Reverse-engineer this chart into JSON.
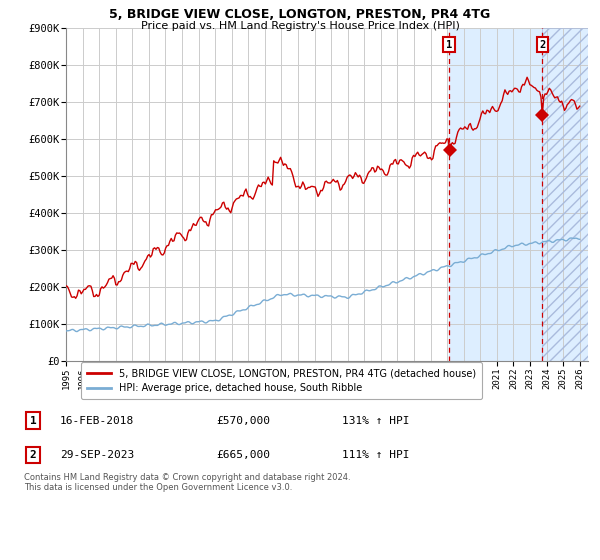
{
  "title1": "5, BRIDGE VIEW CLOSE, LONGTON, PRESTON, PR4 4TG",
  "title2": "Price paid vs. HM Land Registry's House Price Index (HPI)",
  "x_start_year": 1995,
  "x_end_year": 2026,
  "y_min": 0,
  "y_max": 900000,
  "y_ticks": [
    0,
    100000,
    200000,
    300000,
    400000,
    500000,
    600000,
    700000,
    800000,
    900000
  ],
  "y_tick_labels": [
    "£0",
    "£100K",
    "£200K",
    "£300K",
    "£400K",
    "£500K",
    "£600K",
    "£700K",
    "£800K",
    "£900K"
  ],
  "sale1_year": 2018.12,
  "sale1_price": 570000,
  "sale1_label": "1",
  "sale1_date": "16-FEB-2018",
  "sale1_hpi": "131% ↑ HPI",
  "sale2_year": 2023.75,
  "sale2_price": 665000,
  "sale2_label": "2",
  "sale2_date": "29-SEP-2023",
  "sale2_hpi": "111% ↑ HPI",
  "red_line_color": "#cc0000",
  "blue_line_color": "#7aadd4",
  "bg_color": "#ffffff",
  "grid_color": "#cccccc",
  "highlight_bg": "#ddeeff",
  "legend_line1": "5, BRIDGE VIEW CLOSE, LONGTON, PRESTON, PR4 4TG (detached house)",
  "legend_line2": "HPI: Average price, detached house, South Ribble",
  "footer": "Contains HM Land Registry data © Crown copyright and database right 2024.\nThis data is licensed under the Open Government Licence v3.0."
}
